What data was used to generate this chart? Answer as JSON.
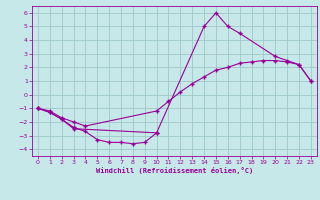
{
  "xlabel": "Windchill (Refroidissement éolien,°C)",
  "background_color": "#c6e8e8",
  "grid_color": "#a0c8c8",
  "line_color": "#990099",
  "xlim": [
    -0.5,
    23.5
  ],
  "ylim": [
    -4.5,
    6.5
  ],
  "xticks": [
    0,
    1,
    2,
    3,
    4,
    5,
    6,
    7,
    8,
    9,
    10,
    11,
    12,
    13,
    14,
    15,
    16,
    17,
    18,
    19,
    20,
    21,
    22,
    23
  ],
  "yticks": [
    -4,
    -3,
    -2,
    -1,
    0,
    1,
    2,
    3,
    4,
    5,
    6
  ],
  "line1_x": [
    0,
    1,
    2,
    3,
    10,
    14,
    15,
    16,
    17,
    20,
    21,
    22,
    23
  ],
  "line1_y": [
    -1,
    -1.3,
    -1.8,
    -2.5,
    -2.8,
    5.0,
    6.0,
    5.0,
    4.5,
    2.8,
    2.5,
    2.2,
    1.0
  ],
  "line2_x": [
    0,
    1,
    2,
    3,
    4,
    10,
    11,
    12,
    13,
    14,
    15,
    16,
    17,
    18,
    19,
    20,
    21,
    22,
    23
  ],
  "line2_y": [
    -1,
    -1.2,
    -1.7,
    -2.0,
    -2.3,
    -1.2,
    -0.5,
    0.2,
    0.8,
    1.3,
    1.8,
    2.0,
    2.3,
    2.4,
    2.5,
    2.5,
    2.4,
    2.2,
    1.0
  ],
  "line3_x": [
    0,
    1,
    2,
    3,
    4,
    5,
    6,
    7,
    8,
    9,
    10
  ],
  "line3_y": [
    -1,
    -1.3,
    -1.8,
    -2.4,
    -2.7,
    -3.3,
    -3.5,
    -3.5,
    -3.6,
    -3.5,
    -2.8
  ]
}
